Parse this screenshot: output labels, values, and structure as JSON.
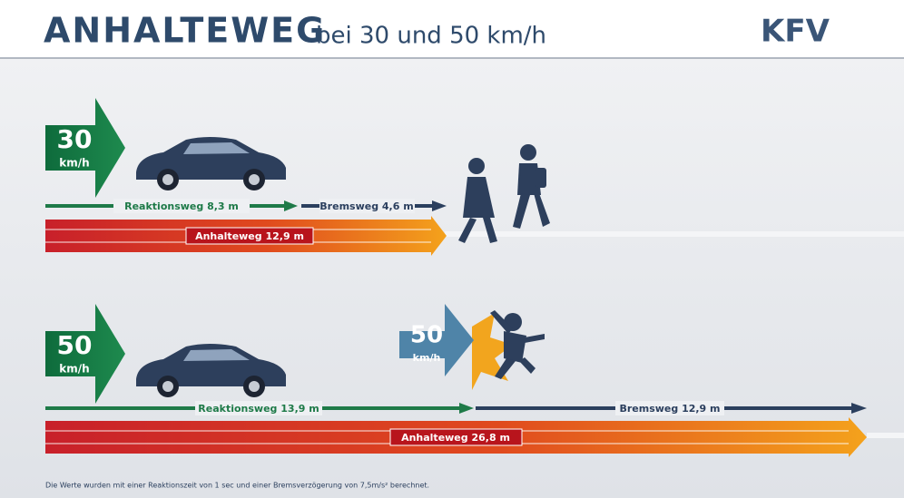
{
  "header": {
    "title": "ANHALTEWEG",
    "subtitle": "bei 30 und 50 km/h",
    "logo": "KFV"
  },
  "scenarios": [
    {
      "speed": "30",
      "unit": "km/h",
      "reaction": "Reaktionsweg 8,3 m",
      "braking": "Bremsweg 4,6 m",
      "stopping": "Anhalteweg 12,9 m"
    },
    {
      "speed": "50",
      "unit": "km/h",
      "reaction": "Reaktionsweg 13,9 m",
      "braking": "Bremsweg 12,9 m",
      "stopping": "Anhalteweg 26,8 m",
      "impact_speed": "50",
      "impact_unit": "km/h"
    }
  ],
  "footnote": "Die Werte wurden mit einer Reaktionszeit von 1 sec und einer Bremsverzögerung von 7,5m/s² berechnet."
}
